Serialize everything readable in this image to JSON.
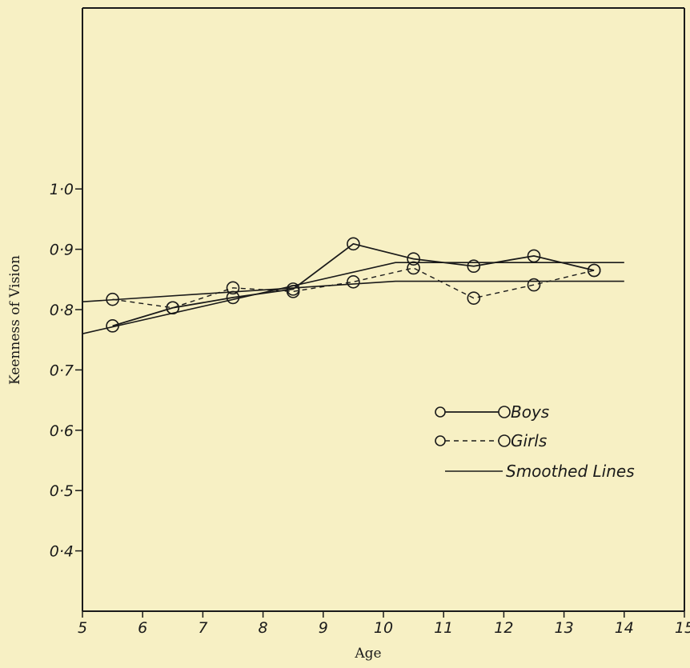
{
  "chart_data": {
    "type": "line",
    "title": "",
    "xlabel": "Age",
    "ylabel": "Keenness of Vision",
    "xlim": [
      5,
      15
    ],
    "ylim": [
      0.3,
      1.3
    ],
    "x_ticks": [
      5,
      6,
      7,
      8,
      9,
      10,
      11,
      12,
      13,
      14,
      15
    ],
    "x_tick_labels": [
      "5",
      "6",
      "7",
      "8",
      "9",
      "10",
      "11",
      "12",
      "13",
      "14",
      "15"
    ],
    "y_ticks": [
      0.4,
      0.5,
      0.6,
      0.7,
      0.8,
      0.9,
      1.0
    ],
    "y_tick_labels": [
      "0·4",
      "0·5",
      "0·6",
      "0·7",
      "0·8",
      "0·9",
      "1·0"
    ],
    "grid": false,
    "legend_position": "lower-right",
    "series": [
      {
        "name": "Boys",
        "style": "solid-with-circles",
        "x": [
          5.5,
          6.5,
          7.5,
          8.5,
          9.5,
          10.5,
          11.5,
          12.5,
          13.5
        ],
        "y": [
          0.773,
          0.803,
          0.82,
          0.834,
          0.909,
          0.884,
          0.872,
          0.889,
          0.865
        ]
      },
      {
        "name": "Girls",
        "style": "dashed-with-circles",
        "x": [
          5.5,
          6.5,
          7.5,
          8.5,
          9.5,
          10.5,
          11.5,
          12.5,
          13.5
        ],
        "y": [
          0.817,
          0.803,
          0.836,
          0.83,
          0.846,
          0.869,
          0.819,
          0.841,
          0.865
        ]
      },
      {
        "name": "Smoothed Lines",
        "style": "solid-thin",
        "segments": [
          {
            "x": [
              5.0,
              10.2,
              14.0
            ],
            "y": [
              0.76,
              0.878,
              0.878
            ]
          },
          {
            "x": [
              5.0,
              10.2,
              14.0
            ],
            "y": [
              0.813,
              0.847,
              0.847
            ]
          }
        ]
      }
    ],
    "legend": [
      {
        "label": "Boys",
        "style": "solid-with-circles"
      },
      {
        "label": "Girls",
        "style": "dashed-with-circles"
      },
      {
        "label": "Smoothed Lines",
        "style": "solid-thin"
      }
    ]
  },
  "colors": {
    "background": "#f7f0c4",
    "ink": "#1a1a1a"
  }
}
